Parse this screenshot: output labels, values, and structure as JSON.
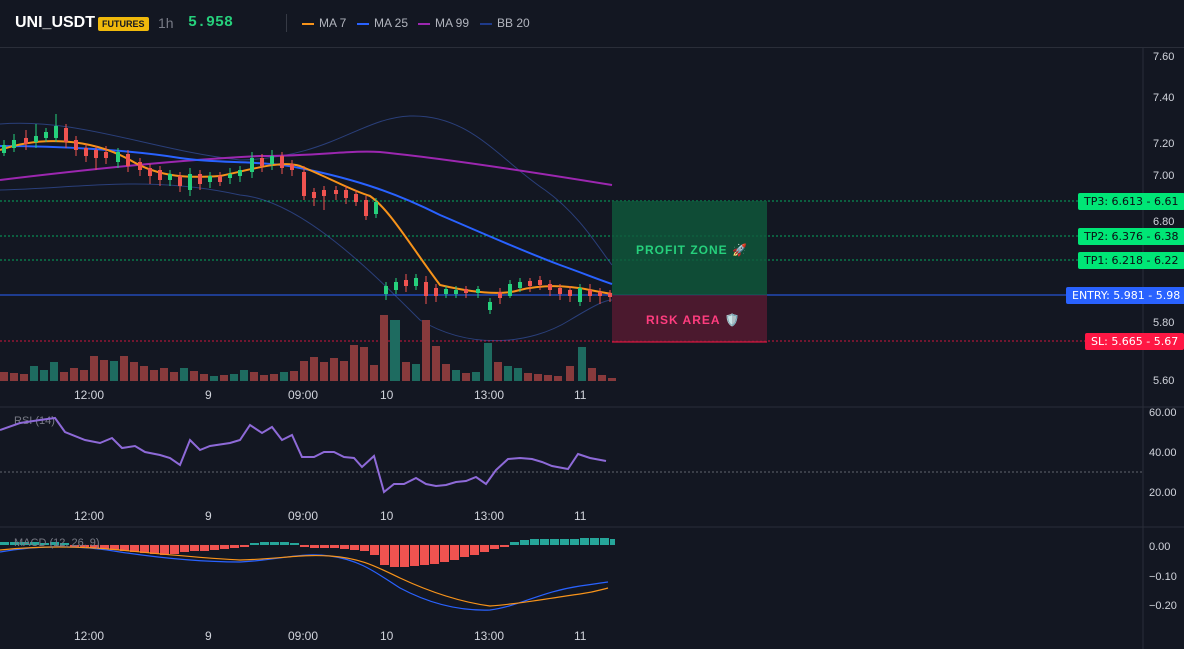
{
  "header": {
    "symbol": "UNI_USDT",
    "badge": "FUTURES",
    "timeframe": "1h",
    "last_price": "5.958",
    "legend": [
      {
        "label": "MA 7",
        "color": "#f7931a"
      },
      {
        "label": "MA 25",
        "color": "#2962ff"
      },
      {
        "label": "MA 99",
        "color": "#9c27b0"
      },
      {
        "label": "BB 20",
        "color": "#1e3a8a"
      }
    ]
  },
  "price_axis": [
    "7.60",
    "7.40",
    "7.20",
    "7.00",
    "6.80",
    "5.80",
    "5.60"
  ],
  "time_axis": [
    "12:00",
    "9",
    "09:00",
    "10",
    "13:00",
    "11"
  ],
  "levels": {
    "tp3": "TP3: 6.613 - 6.61",
    "tp2": "TP2: 6.376 - 6.38",
    "tp1": "TP1: 6.218 - 6.22",
    "entry": "ENTRY: 5.981 - 5.98",
    "sl": "SL: 5.665 - 5.67"
  },
  "zones": {
    "profit": "PROFIT ZONE 🚀",
    "risk": "RISK AREA 🛡️"
  },
  "rsi": {
    "label": "RSI (14)",
    "axis": [
      "60.00",
      "40.00",
      "20.00"
    ]
  },
  "macd": {
    "label": "MACD (12, 26, 9)",
    "axis": [
      "0.00",
      "−0.10",
      "−0.20"
    ]
  },
  "colors": {
    "up": "#26a69a",
    "down": "#ef5350",
    "profit": "#00e676",
    "risk": "#ff1744",
    "entry": "#2962ff"
  }
}
